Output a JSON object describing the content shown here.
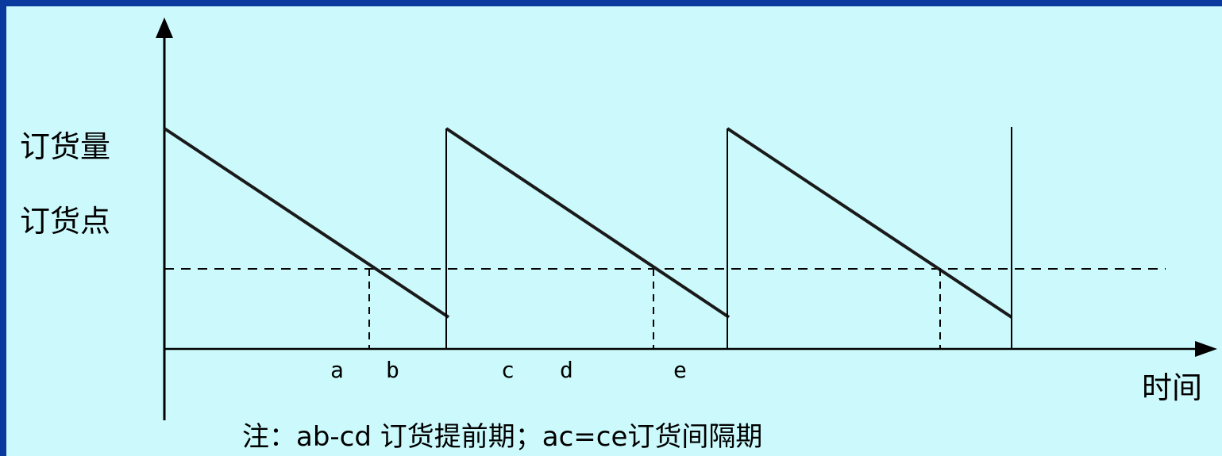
{
  "diagram": {
    "y_labels": {
      "order_quantity": "订货量",
      "reorder_point": "订货点"
    },
    "x_axis_label": "时间",
    "point_labels": [
      "a",
      "b",
      "c",
      "d",
      "e"
    ],
    "note": "注：ab-cd 订货提前期；ac=ce订货间隔期"
  },
  "colors": {
    "frame_border": "#0b3a9e",
    "background": "#ccfafc",
    "ink": "#000000"
  }
}
